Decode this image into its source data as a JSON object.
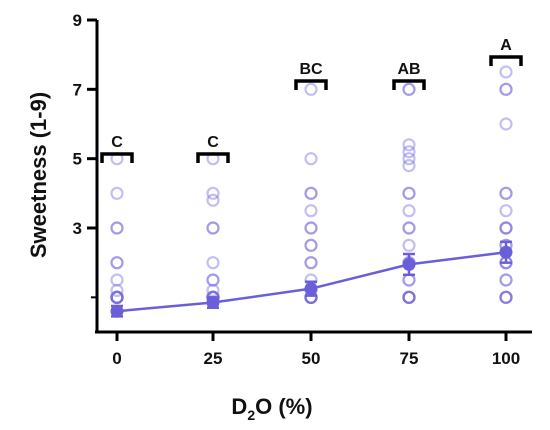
{
  "chart_data": {
    "type": "scatter",
    "xlabel_main": "D",
    "xlabel_sub": "2",
    "xlabel_rest": "O (%)",
    "ylabel": "Sweetness (1-9)",
    "x_categories": [
      "0",
      "25",
      "50",
      "75",
      "100"
    ],
    "y_ticks": [
      3,
      5,
      7,
      9
    ],
    "ylim": [
      0,
      9
    ],
    "grid": false,
    "significance_letters": [
      "C",
      "C",
      "BC",
      "AB",
      "A"
    ],
    "mean_series": {
      "mean": [
        0.6,
        0.85,
        1.25,
        1.95,
        2.3
      ],
      "error": [
        0.15,
        0.15,
        0.2,
        0.3,
        0.3
      ]
    },
    "individual_points": [
      [
        1,
        1,
        1,
        1,
        1,
        1,
        1,
        1,
        1,
        1,
        1,
        1,
        1,
        1.2,
        1.5,
        2,
        2,
        3,
        3,
        4,
        5
      ],
      [
        1,
        1,
        1,
        1,
        1,
        1,
        1,
        1,
        1,
        1,
        1,
        1.2,
        1.5,
        1.5,
        2,
        3,
        3,
        3.8,
        4,
        5
      ],
      [
        1,
        1,
        1,
        1,
        1,
        1,
        1,
        1,
        1.2,
        1.5,
        2,
        2,
        2.5,
        2.5,
        3,
        3,
        3.5,
        4,
        4,
        5,
        7
      ],
      [
        1,
        1,
        1,
        1,
        1,
        1,
        1.5,
        1.5,
        2,
        2,
        2.5,
        3,
        3,
        3.5,
        4,
        4,
        4.8,
        5,
        5.2,
        5.4,
        7,
        7
      ],
      [
        1,
        1,
        1,
        1,
        1.5,
        1.5,
        2,
        2,
        2,
        2.5,
        2.5,
        3,
        3,
        3,
        3.5,
        4,
        4,
        6,
        7,
        7,
        7.5
      ]
    ],
    "colors": {
      "mean": "#6a5fd8",
      "points": "#7b70e0",
      "axis": "#000000"
    }
  }
}
